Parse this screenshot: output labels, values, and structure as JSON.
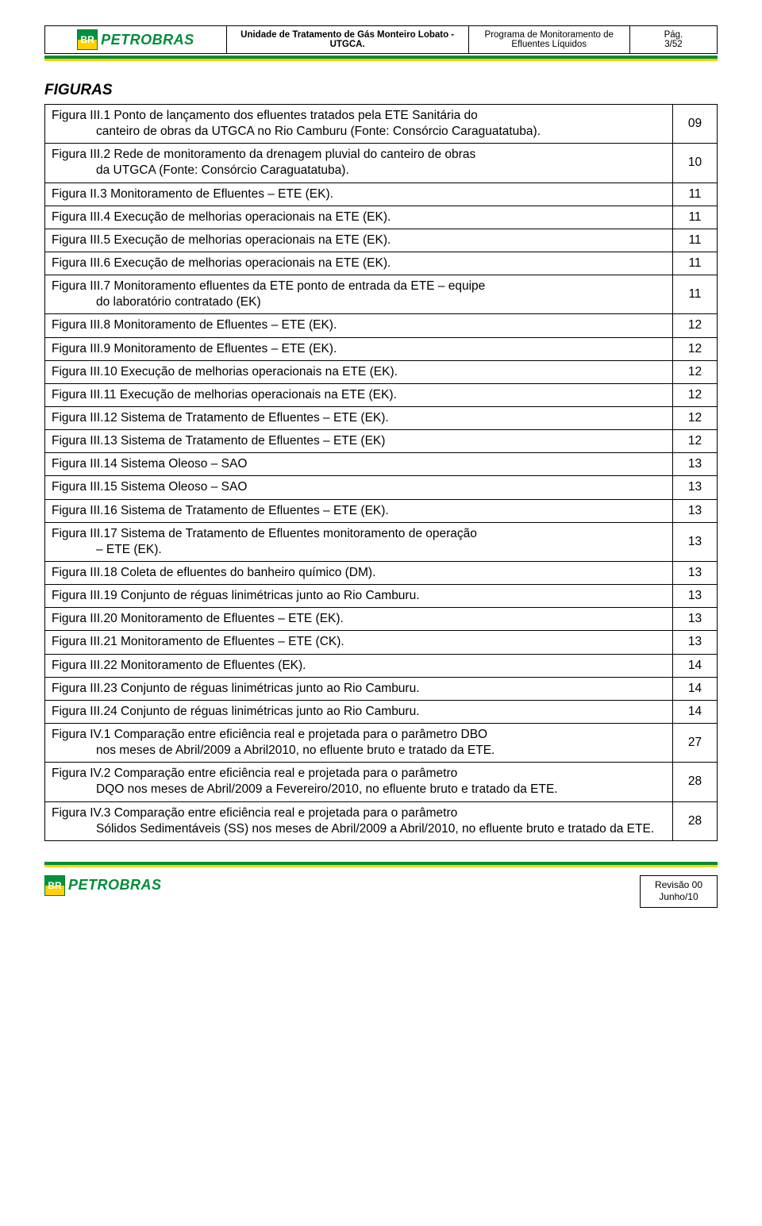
{
  "header": {
    "logo_br": "BR",
    "logo_name": "PETROBRAS",
    "title": "Unidade de Tratamento de Gás Monteiro Lobato - UTGCA.",
    "program": "Programa de Monitoramento de Efluentes Líquidos",
    "pag_label": "Pág.",
    "pag_value": "3/52"
  },
  "section_title": "FIGURAS",
  "rows": [
    {
      "text": "Figura III.1 Ponto de lançamento dos efluentes tratados pela ETE Sanitária do",
      "indent": "canteiro de obras da UTGCA no Rio Camburu (Fonte: Consórcio Caraguatatuba).",
      "num": "09"
    },
    {
      "text": "Figura III.2 Rede de monitoramento da drenagem pluvial do canteiro de obras",
      "indent": "da UTGCA (Fonte: Consórcio Caraguatatuba).",
      "num": "10"
    },
    {
      "text": "Figura II.3 Monitoramento de Efluentes – ETE (EK).",
      "num": "11"
    },
    {
      "text": "Figura III.4 Execução de melhorias operacionais na ETE (EK).",
      "num": "11"
    },
    {
      "text": "Figura III.5 Execução de melhorias operacionais na ETE (EK).",
      "num": "11"
    },
    {
      "text": "Figura III.6 Execução de melhorias operacionais na ETE (EK).",
      "num": "11"
    },
    {
      "text": "Figura III.7  Monitoramento efluentes da ETE ponto de entrada da ETE – equipe",
      "indent": "do laboratório contratado (EK)",
      "num": "11"
    },
    {
      "text": "Figura III.8 Monitoramento de Efluentes – ETE  (EK).",
      "num": "12"
    },
    {
      "text": "Figura III.9 Monitoramento de Efluentes – ETE (EK).",
      "num": "12"
    },
    {
      "text": "Figura III.10 Execução de melhorias operacionais na ETE (EK).",
      "num": "12"
    },
    {
      "text": "Figura III.11 Execução de melhorias operacionais na ETE (EK).",
      "num": "12"
    },
    {
      "text": "Figura III.12 Sistema de Tratamento  de Efluentes – ETE (EK).",
      "num": "12"
    },
    {
      "text": "Figura III.13 Sistema de Tratamento de Efluentes – ETE (EK)",
      "num": "12"
    },
    {
      "text": "Figura III.14 Sistema Oleoso – SAO",
      "num": "13"
    },
    {
      "text": "Figura III.15 Sistema Oleoso – SAO",
      "num": "13"
    },
    {
      "text": "Figura III.16 Sistema de Tratamento  de Efluentes – ETE (EK).",
      "num": "13"
    },
    {
      "text": "Figura III.17 Sistema de Tratamento de Efluentes  monitoramento de operação",
      "indent": "– ETE (EK).",
      "num": "13"
    },
    {
      "text": "Figura III.18 Coleta de efluentes do banheiro químico (DM).",
      "num": "13"
    },
    {
      "text": "Figura III.19 Conjunto de réguas linimétricas junto ao Rio Camburu.",
      "num": "13"
    },
    {
      "text": "Figura III.20 Monitoramento de Efluentes – ETE (EK).",
      "num": "13"
    },
    {
      "text": "Figura III.21 Monitoramento de Efluentes – ETE (CK).",
      "num": "13"
    },
    {
      "text": "Figura III.22 Monitoramento de Efluentes (EK).",
      "num": "14"
    },
    {
      "text": "Figura III.23 Conjunto de réguas linimétricas junto ao Rio Camburu.",
      "num": "14"
    },
    {
      "text": "Figura III.24 Conjunto de réguas linimétricas junto ao Rio Camburu.",
      "num": "14"
    },
    {
      "text": "Figura IV.1 Comparação entre eficiência real e projetada para o parâmetro DBO",
      "indent": "nos meses de Abril/2009 a Abril2010, no efluente bruto e tratado da ETE.",
      "num": "27"
    },
    {
      "text": "Figura IV.2 Comparação entre eficiência real e projetada para o parâmetro",
      "indent": "DQO nos meses de Abril/2009 a Fevereiro/2010, no efluente bruto e tratado da ETE.",
      "num": "28"
    },
    {
      "text": "Figura IV.3 Comparação entre eficiência real e projetada para o parâmetro",
      "indent": "Sólidos Sedimentáveis (SS) nos meses de Abril/2009 a Abril/2010, no efluente bruto e tratado da ETE.",
      "num": "28"
    }
  ],
  "footer": {
    "revision": "Revisão 00",
    "date": "Junho/10"
  }
}
